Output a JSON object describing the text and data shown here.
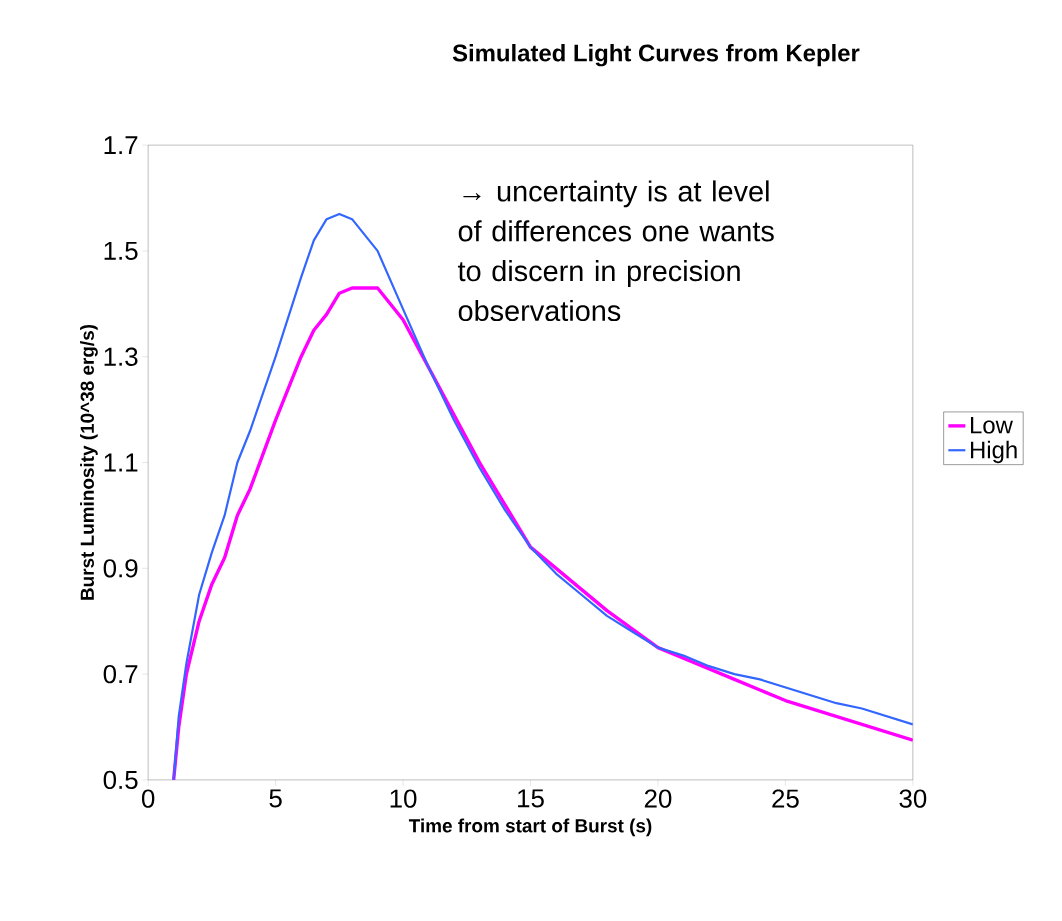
{
  "chart_data": {
    "type": "line",
    "title": "Simulated Light Curves from Kepler",
    "xlabel": "Time from start of Burst (s)",
    "ylabel": "Burst Luminosity (10^38 erg/s)",
    "annotations": [
      "→ uncertainty is at level of differences one wants to discern in precision observations"
    ],
    "x": [
      1.0,
      1.2,
      1.5,
      2,
      2.5,
      3,
      3.5,
      4,
      5,
      6,
      6.5,
      7,
      7.5,
      8,
      9,
      10,
      11,
      12,
      13,
      14,
      15,
      16,
      17,
      18,
      19,
      20,
      21,
      22,
      23,
      24,
      25,
      26,
      27,
      28,
      29,
      30
    ],
    "series": [
      {
        "name": "Low",
        "color": "#ff00ff",
        "values": [
          0.5,
          0.6,
          0.7,
          0.8,
          0.87,
          0.92,
          1.0,
          1.05,
          1.18,
          1.3,
          1.35,
          1.38,
          1.42,
          1.43,
          1.43,
          1.37,
          1.28,
          1.19,
          1.1,
          1.02,
          0.94,
          0.9,
          0.86,
          0.82,
          0.785,
          0.75,
          0.73,
          0.71,
          0.69,
          0.67,
          0.65,
          0.635,
          0.62,
          0.605,
          0.59,
          0.575
        ]
      },
      {
        "name": "High",
        "color": "#3366ff",
        "values": [
          0.5,
          0.62,
          0.72,
          0.85,
          0.93,
          1.0,
          1.1,
          1.16,
          1.3,
          1.45,
          1.52,
          1.56,
          1.57,
          1.56,
          1.5,
          1.39,
          1.28,
          1.18,
          1.09,
          1.01,
          0.94,
          0.89,
          0.85,
          0.81,
          0.78,
          0.75,
          0.735,
          0.715,
          0.7,
          0.69,
          0.675,
          0.66,
          0.645,
          0.635,
          0.62,
          0.605
        ]
      }
    ],
    "xlim": [
      0,
      30
    ],
    "xticks": [
      0,
      5,
      10,
      15,
      20,
      25,
      30
    ],
    "ylim": [
      0.5,
      1.7
    ],
    "yticks": [
      0.5,
      0.7,
      0.9,
      1.1,
      1.3,
      1.5,
      1.7
    ],
    "grid": false,
    "legend": "right",
    "marker": "none",
    "line_style": "solid"
  }
}
